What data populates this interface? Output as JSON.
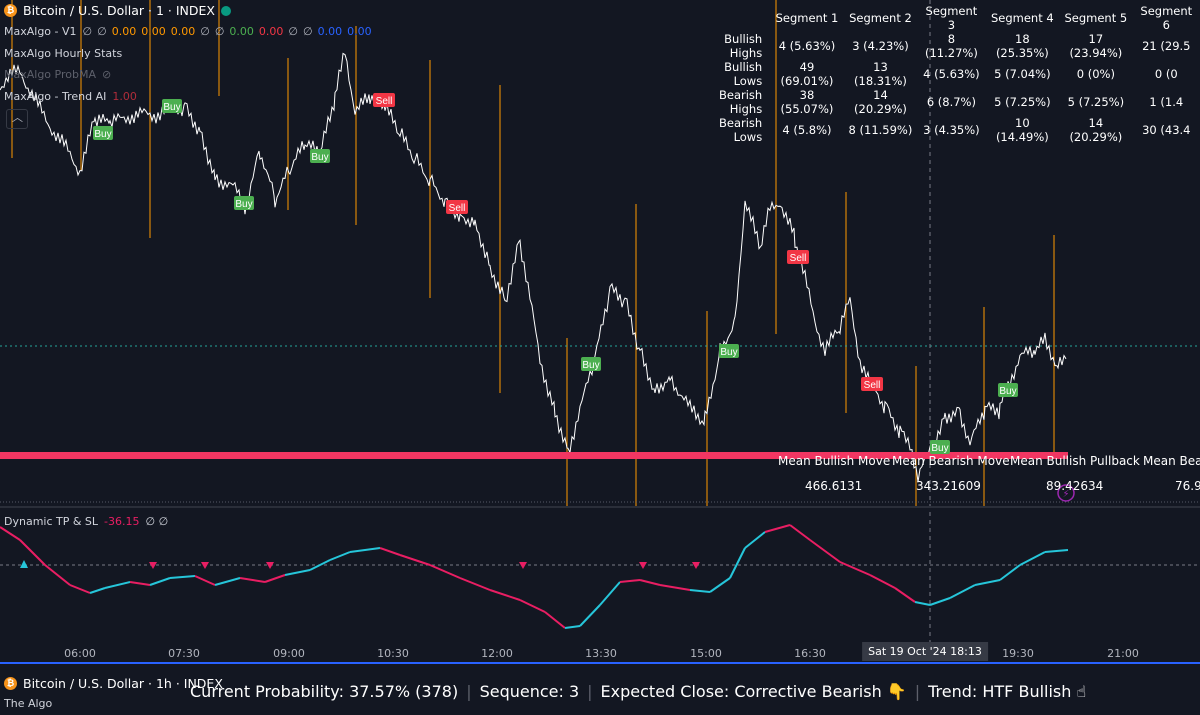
{
  "header": {
    "symbol_icon": "bitcoin-icon",
    "title": "Bitcoin / U.S. Dollar · 1 · INDEX",
    "market_status_color": "#089981"
  },
  "indicators": {
    "v1": {
      "name": "MaxAlgo - V1",
      "values": [
        {
          "text": "∅",
          "color": "#b2b5be"
        },
        {
          "text": "∅",
          "color": "#b2b5be"
        },
        {
          "text": "0.00",
          "color": "#ff9800"
        },
        {
          "text": "0.00",
          "color": "#ff9800"
        },
        {
          "text": "0.00",
          "color": "#ff9800"
        },
        {
          "text": "∅",
          "color": "#b2b5be"
        },
        {
          "text": "∅",
          "color": "#b2b5be"
        },
        {
          "text": "0.00",
          "color": "#4caf50"
        },
        {
          "text": "0.00",
          "color": "#f23645"
        },
        {
          "text": "∅",
          "color": "#b2b5be"
        },
        {
          "text": "∅",
          "color": "#b2b5be"
        },
        {
          "text": "0.00",
          "color": "#2962ff"
        },
        {
          "text": "0.00",
          "color": "#2962ff"
        }
      ]
    },
    "hourly": {
      "name": "MaxAlgo Hourly Stats"
    },
    "probma": {
      "name": "MaxAlgo ProbMA",
      "icon": "eye-off-icon"
    },
    "trend": {
      "name": "MaxAlgo - Trend AI",
      "value": "1.00",
      "value_color": "#f23645"
    }
  },
  "segments": {
    "headers": [
      "Segment 1",
      "Segment 2",
      "Segment 3",
      "Segment 4",
      "Segment 5",
      "Segment 6"
    ],
    "rows": [
      {
        "label": "Bullish Highs",
        "cells": [
          "4 (5.63%)",
          "3 (4.23%)",
          "8 (11.27%)",
          "18 (25.35%)",
          "17 (23.94%)",
          "21 (29.5"
        ]
      },
      {
        "label": "Bullish Lows",
        "cells": [
          "49 (69.01%)",
          "13 (18.31%)",
          "4 (5.63%)",
          "5 (7.04%)",
          "0 (0%)",
          "0 (0"
        ]
      },
      {
        "label": "Bearish Highs",
        "cells": [
          "38 (55.07%)",
          "14 (20.29%)",
          "6 (8.7%)",
          "5 (7.25%)",
          "5 (7.25%)",
          "1 (1.4"
        ]
      },
      {
        "label": "Bearish Lows",
        "cells": [
          "4 (5.8%)",
          "8 (11.59%)",
          "3 (4.35%)",
          "10 (14.49%)",
          "14 (20.29%)",
          "30 (43.4"
        ]
      }
    ]
  },
  "signals": {
    "buy_label": "Buy",
    "sell_label": "Sell",
    "buy_color": "#4caf50",
    "sell_color": "#f23645"
  },
  "mean_stats": {
    "headers": [
      "Mean Bullish Move",
      "Mean Bearish Move",
      "Mean Bullish Pullback",
      "Mean Bear"
    ],
    "values": [
      "466.6131",
      "343.21609",
      "89.42634",
      "76.9"
    ]
  },
  "dynamic": {
    "name": "Dynamic TP & SL",
    "value": "-36.15",
    "extra": "∅ ∅",
    "value_color": "#e91e63"
  },
  "time_axis": {
    "labels": [
      "06:00",
      "07:30",
      "09:00",
      "10:30",
      "12:00",
      "13:30",
      "15:00",
      "16:30",
      "18:13",
      "19:30",
      "21:00"
    ],
    "current": "Sat 19 Oct '24   18:13"
  },
  "bottom": {
    "title": "Bitcoin / U.S. Dollar · 1h · INDEX",
    "subtitle": "The Algo",
    "probability": "Current Probability: 37.57% (378)",
    "sequence": "Sequence: 3",
    "expected": "Expected Close: Corrective Bearish 👇",
    "trend": "Trend: HTF Bullish ☝"
  },
  "colors": {
    "price_line": "#ffffff",
    "support_line": "#f23662",
    "vlines": "#ff9800",
    "tp_up": "#26c6da",
    "tp_down": "#e91e63"
  }
}
